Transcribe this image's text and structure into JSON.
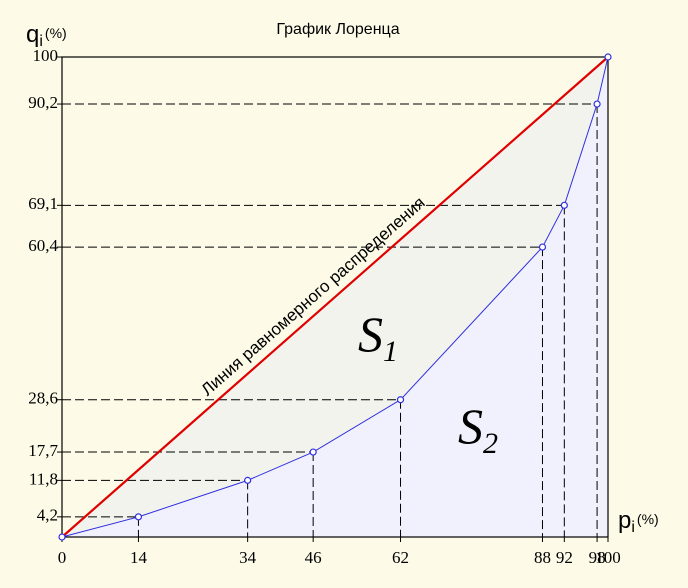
{
  "chart_data": {
    "type": "line",
    "title": "График Лоренца",
    "y_axis": {
      "symbol": "q",
      "subscript": "i",
      "unit": "(%)"
    },
    "x_axis": {
      "symbol": "p",
      "subscript": "i",
      "unit": "(%)"
    },
    "x": [
      0,
      14,
      34,
      46,
      62,
      88,
      92,
      98,
      100
    ],
    "series": [
      {
        "color": "#3030e0",
        "values": [
          0,
          4.2,
          11.8,
          17.7,
          28.6,
          60.4,
          69.1,
          90.2,
          100
        ]
      }
    ],
    "equality_line": {
      "label": "Линия равномерного распределения",
      "color": "#e00000"
    },
    "areas": [
      {
        "symbol": "S",
        "subscript": "1",
        "color": "#f3f3ee"
      },
      {
        "symbol": "S",
        "subscript": "2",
        "color": "#f1f1fd"
      }
    ],
    "xlim": [
      0,
      100
    ],
    "ylim": [
      0,
      100
    ],
    "xticks": [
      0,
      14,
      34,
      46,
      62,
      88,
      92,
      98,
      100
    ],
    "yticks": [
      {
        "value": 4.2,
        "label": "4,2"
      },
      {
        "value": 11.8,
        "label": "11,8"
      },
      {
        "value": 17.7,
        "label": "17,7"
      },
      {
        "value": 28.6,
        "label": "28,6"
      },
      {
        "value": 60.4,
        "label": "60,4"
      },
      {
        "value": 69.1,
        "label": "69,1"
      },
      {
        "value": 90.2,
        "label": "90,2"
      },
      100
    ]
  }
}
